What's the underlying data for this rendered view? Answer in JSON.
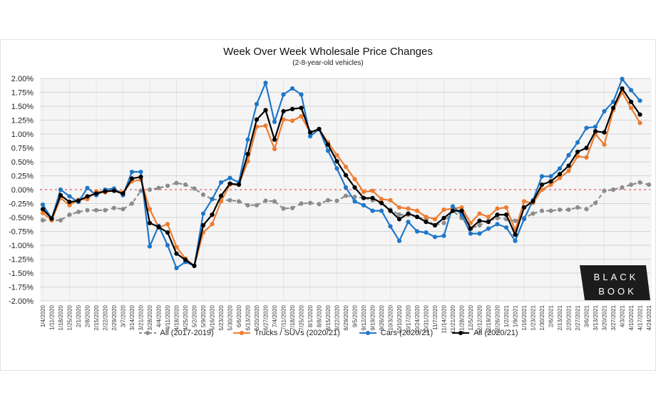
{
  "chart_data": {
    "type": "line",
    "title": "Week Over Week Wholesale Price Changes",
    "subtitle": "(2-8-year-old vehicles)",
    "xlabel": "",
    "ylabel": "",
    "ylim": [
      -2.0,
      2.0
    ],
    "yticks": [
      "2.00%",
      "1.75%",
      "1.50%",
      "1.25%",
      "1.00%",
      "0.75%",
      "0.50%",
      "0.25%",
      "0.00%",
      "-0.25%",
      "-0.50%",
      "-0.75%",
      "-1.00%",
      "-1.25%",
      "-1.50%",
      "-1.75%",
      "-2.00%"
    ],
    "grid": true,
    "legend_position": "bottom",
    "x": [
      "1/4/2020",
      "1/11/2020",
      "1/18/2020",
      "1/25/2020",
      "2/1/2020",
      "2/8/2020",
      "2/15/2020",
      "2/22/2020",
      "2/29/2020",
      "3/7/2020",
      "3/14/2020",
      "3/21/2020",
      "3/28/2020",
      "4/4/2020",
      "4/11/2020",
      "4/18/2020",
      "4/25/2020",
      "5/2/2020",
      "5/9/2020",
      "5/16/2020",
      "5/23/2020",
      "5/30/2020",
      "6/6/2020",
      "6/13/2020",
      "6/20/2020",
      "6/27/2020",
      "7/4/2020",
      "7/11/2020",
      "7/18/2020",
      "7/25/2020",
      "8/1/2020",
      "8/8/2020",
      "8/15/2020",
      "8/22/2020",
      "8/29/2020",
      "9/5/2020",
      "9/12/2020",
      "9/19/2020",
      "9/26/2020",
      "10/3/2020",
      "10/10/2020",
      "10/17/2020",
      "10/24/2020",
      "10/31/2020",
      "11/7/2020",
      "11/14/2020",
      "11/21/2020",
      "11/28/2020",
      "12/5/2020",
      "12/12/2020",
      "12/19/2020",
      "12/26/2020",
      "1/2/2021",
      "1/9/2021",
      "1/16/2021",
      "1/23/2021",
      "1/30/2021",
      "2/6/2021",
      "2/13/2021",
      "2/20/2021",
      "2/27/2021",
      "3/6/2021",
      "3/13/2021",
      "3/20/2021",
      "3/27/2021",
      "4/3/2021",
      "4/10/2021",
      "4/17/2021",
      "4/24/2021"
    ],
    "series": [
      {
        "name": "All (2017-2019)",
        "color": "#8c8c8c",
        "dashed": true,
        "values": [
          -0.55,
          -0.55,
          -0.55,
          -0.45,
          -0.4,
          -0.37,
          -0.37,
          -0.37,
          -0.33,
          -0.35,
          -0.25,
          -0.02,
          0.0,
          0.03,
          0.07,
          0.12,
          0.09,
          0.02,
          -0.09,
          -0.17,
          -0.19,
          -0.19,
          -0.21,
          -0.28,
          -0.28,
          -0.2,
          -0.21,
          -0.34,
          -0.33,
          -0.25,
          -0.24,
          -0.26,
          -0.19,
          -0.2,
          -0.11,
          -0.13,
          -0.15,
          -0.19,
          -0.24,
          -0.36,
          -0.45,
          -0.45,
          -0.49,
          -0.53,
          -0.64,
          -0.6,
          -0.38,
          -0.51,
          -0.7,
          -0.64,
          -0.56,
          -0.51,
          -0.53,
          -0.56,
          -0.51,
          -0.43,
          -0.38,
          -0.38,
          -0.36,
          -0.36,
          -0.32,
          -0.35,
          -0.24,
          -0.02,
          0.0,
          0.04,
          0.09,
          0.13,
          0.09
        ]
      },
      {
        "name": "Trucks / SUVs (2020/21)",
        "color": "#ed7d31",
        "dashed": false,
        "values": [
          -0.42,
          -0.55,
          -0.15,
          -0.28,
          -0.18,
          -0.17,
          -0.03,
          -0.05,
          0.0,
          -0.05,
          0.15,
          0.18,
          -0.35,
          -0.68,
          -0.62,
          -1.03,
          -1.24,
          -1.37,
          -0.77,
          -0.62,
          -0.21,
          0.09,
          0.09,
          0.51,
          1.13,
          1.15,
          0.73,
          1.26,
          1.24,
          1.32,
          1.03,
          1.09,
          0.85,
          0.62,
          0.41,
          0.19,
          -0.04,
          -0.02,
          -0.17,
          -0.19,
          -0.32,
          -0.34,
          -0.38,
          -0.49,
          -0.53,
          -0.36,
          -0.34,
          -0.32,
          -0.6,
          -0.43,
          -0.49,
          -0.34,
          -0.32,
          -0.73,
          -0.21,
          -0.24,
          0.0,
          0.09,
          0.21,
          0.34,
          0.6,
          0.58,
          1.0,
          0.81,
          1.43,
          1.75,
          1.47,
          1.2,
          null
        ]
      },
      {
        "name": "Cars (2020/21)",
        "color": "#1f77c8",
        "dashed": false,
        "values": [
          -0.27,
          -0.52,
          0.0,
          -0.12,
          -0.22,
          0.03,
          -0.1,
          0.0,
          0.02,
          -0.1,
          0.32,
          0.32,
          -1.02,
          -0.65,
          -1.0,
          -1.41,
          -1.3,
          -1.37,
          -0.43,
          -0.17,
          0.13,
          0.21,
          0.13,
          0.9,
          1.54,
          1.92,
          1.22,
          1.71,
          1.82,
          1.71,
          0.96,
          1.09,
          0.7,
          0.38,
          0.04,
          -0.21,
          -0.28,
          -0.38,
          -0.38,
          -0.66,
          -0.92,
          -0.58,
          -0.75,
          -0.77,
          -0.85,
          -0.83,
          -0.3,
          -0.45,
          -0.79,
          -0.79,
          -0.7,
          -0.62,
          -0.68,
          -0.92,
          -0.53,
          -0.19,
          0.24,
          0.24,
          0.38,
          0.62,
          0.85,
          1.11,
          1.13,
          1.41,
          1.58,
          1.99,
          1.79,
          1.6,
          null
        ]
      },
      {
        "name": "All (2020/21)",
        "color": "#000000",
        "dashed": false,
        "values": [
          -0.35,
          -0.52,
          -0.1,
          -0.22,
          -0.2,
          -0.12,
          -0.07,
          -0.03,
          -0.02,
          -0.07,
          0.2,
          0.23,
          -0.6,
          -0.67,
          -0.77,
          -1.15,
          -1.26,
          -1.37,
          -0.64,
          -0.45,
          -0.11,
          0.11,
          0.09,
          0.64,
          1.26,
          1.43,
          0.9,
          1.41,
          1.45,
          1.47,
          1.03,
          1.09,
          0.81,
          0.51,
          0.26,
          0.04,
          -0.15,
          -0.15,
          -0.24,
          -0.38,
          -0.53,
          -0.43,
          -0.49,
          -0.58,
          -0.64,
          -0.51,
          -0.38,
          -0.38,
          -0.7,
          -0.56,
          -0.58,
          -0.45,
          -0.45,
          -0.81,
          -0.32,
          -0.21,
          0.09,
          0.15,
          0.28,
          0.43,
          0.68,
          0.75,
          1.05,
          1.03,
          1.47,
          1.82,
          1.58,
          1.35,
          null
        ]
      }
    ],
    "zero_line_color": "#e03030"
  },
  "logo": {
    "line1": "BLACK",
    "line2": "BOOK"
  }
}
